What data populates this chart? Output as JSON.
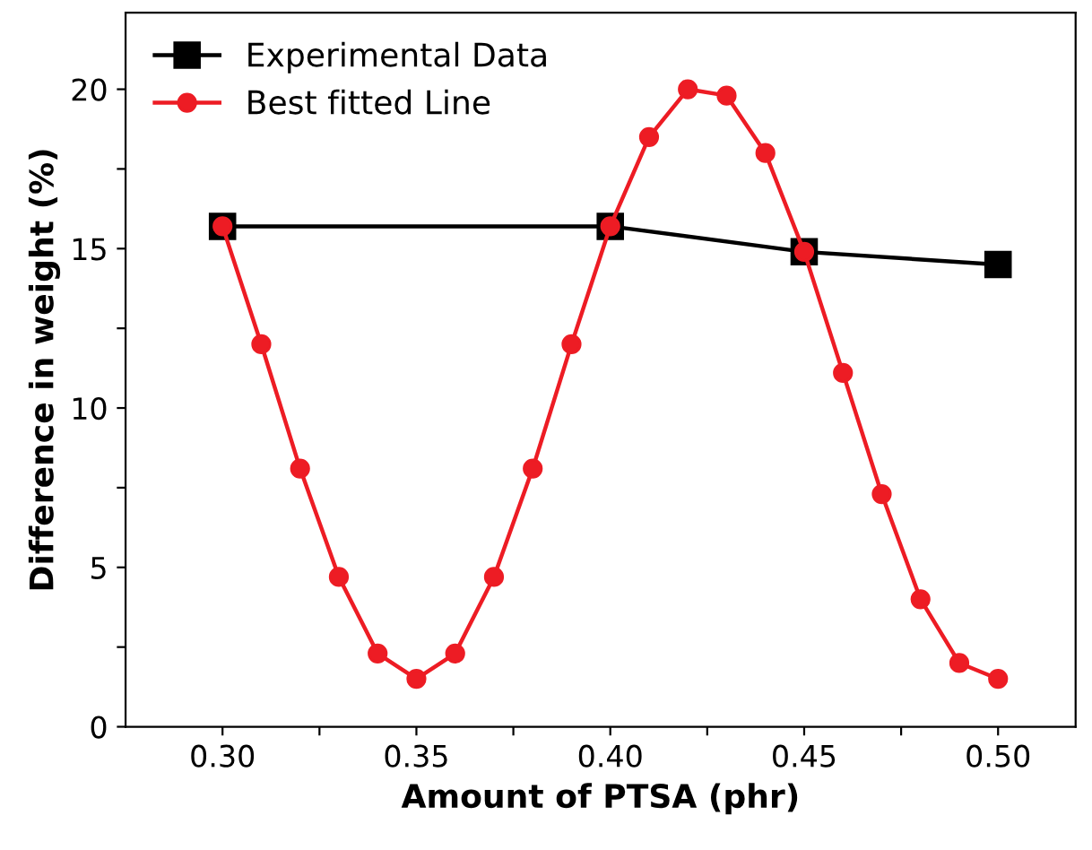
{
  "chart_data": {
    "type": "line",
    "xlabel": "Amount of PTSA (phr)",
    "ylabel": "Difference in weight (%)",
    "xlim": [
      0.275,
      0.52
    ],
    "ylim": [
      0,
      22.4
    ],
    "xticks": [
      {
        "value": 0.3,
        "label": "0.30"
      },
      {
        "value": 0.325,
        "label": null
      },
      {
        "value": 0.35,
        "label": "0.35"
      },
      {
        "value": 0.375,
        "label": null
      },
      {
        "value": 0.4,
        "label": "0.40"
      },
      {
        "value": 0.425,
        "label": null
      },
      {
        "value": 0.45,
        "label": "0.45"
      },
      {
        "value": 0.475,
        "label": null
      },
      {
        "value": 0.5,
        "label": "0.50"
      }
    ],
    "yticks": [
      0,
      {
        "value": 2.5,
        "label": null
      },
      5,
      {
        "value": 7.5,
        "label": null
      },
      10,
      {
        "value": 12.5,
        "label": null
      },
      15,
      {
        "value": 17.5,
        "label": null
      },
      20
    ],
    "grid": false,
    "legend": "top left",
    "line_style": "solid",
    "series": [
      {
        "name": "Experimental Data",
        "color": "#000000",
        "marker": "square",
        "x": [
          0.3,
          0.4,
          0.45,
          0.5
        ],
        "values": [
          15.7,
          15.7,
          14.9,
          14.5
        ]
      },
      {
        "name": "Best fitted Line",
        "color": "#ed1c24",
        "marker": "circle",
        "x": [
          0.3,
          0.31,
          0.32,
          0.33,
          0.34,
          0.35,
          0.36,
          0.37,
          0.38,
          0.39,
          0.4,
          0.41,
          0.42,
          0.43,
          0.44,
          0.45,
          0.46,
          0.47,
          0.48,
          0.49,
          0.5
        ],
        "values": [
          15.7,
          12.0,
          8.1,
          4.7,
          2.3,
          1.5,
          2.3,
          4.7,
          8.1,
          12.0,
          15.7,
          18.5,
          20.0,
          19.8,
          18.0,
          14.9,
          11.1,
          7.3,
          4.0,
          2.0,
          1.5
        ]
      }
    ]
  }
}
